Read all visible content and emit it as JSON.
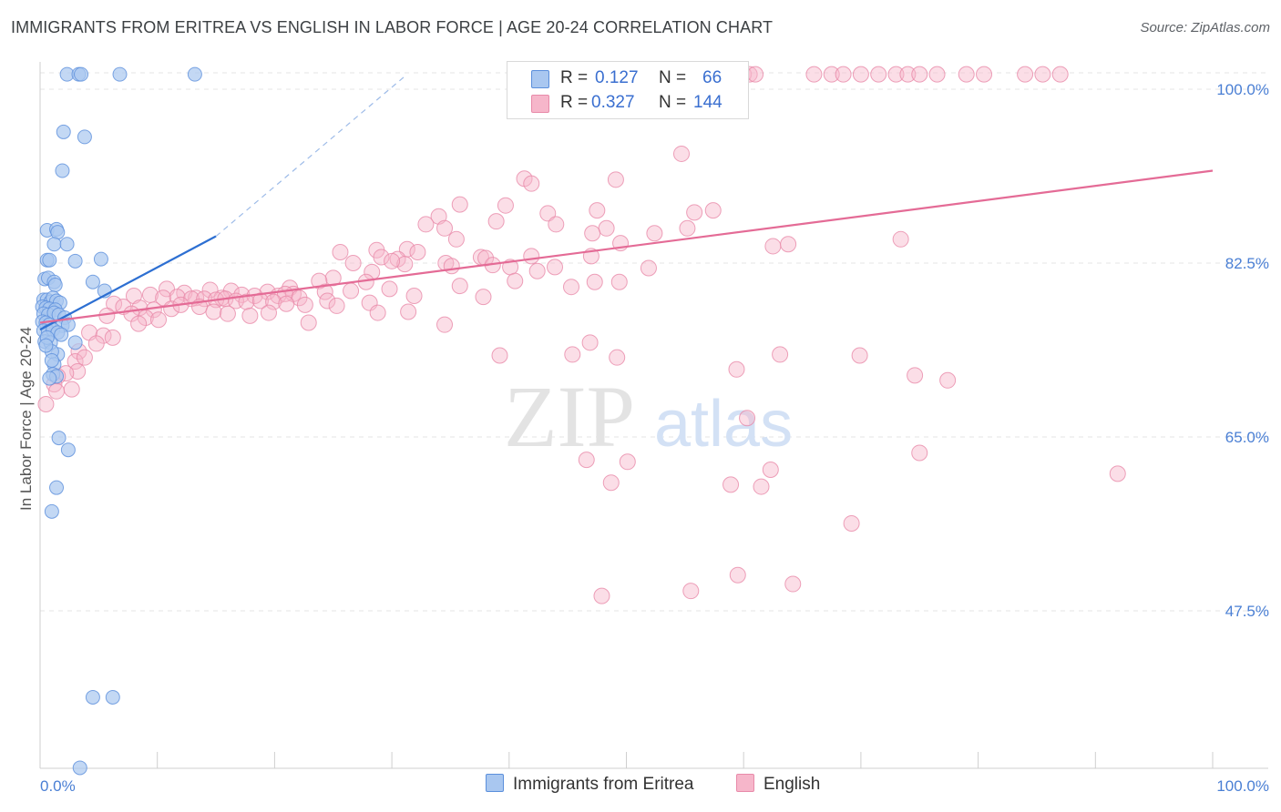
{
  "header": {
    "title": "IMMIGRANTS FROM ERITREA VS ENGLISH IN LABOR FORCE | AGE 20-24 CORRELATION CHART",
    "source": "Source: ZipAtlas.com"
  },
  "legend": {
    "r_label": "R =",
    "n_label": "N =",
    "rows": [
      {
        "r": "0.127",
        "n": "66"
      },
      {
        "r": "0.327",
        "n": "144"
      }
    ]
  },
  "watermark": {
    "zip": "ZIP",
    "atlas": "atlas"
  },
  "colors": {
    "eritrea_fill": "#a9c7f0",
    "eritrea_stroke": "#5b8fdc",
    "eritrea_line": "#2d6fd2",
    "english_fill": "#f6b6ca",
    "english_stroke": "#e88aa9",
    "english_line": "#e46b96",
    "tick_color": "#4a7fd4"
  },
  "chart_data": {
    "type": "scatter",
    "title": "IMMIGRANTS FROM ERITREA VS ENGLISH IN LABOR FORCE | AGE 20-24 CORRELATION CHART",
    "xlabel": "",
    "ylabel": "In Labor Force | Age 20-24",
    "xlim": [
      0,
      100
    ],
    "ylim": [
      30,
      100
    ],
    "x_tick_labels": [
      "0.0%",
      "100.0%"
    ],
    "y_ticks": [
      {
        "value": 100,
        "label": "100.0%"
      },
      {
        "value": 82.5,
        "label": "82.5%"
      },
      {
        "value": 65,
        "label": "65.0%"
      },
      {
        "value": 47.5,
        "label": "47.5%"
      }
    ],
    "grid": true,
    "legend_position": "top-center",
    "series": [
      {
        "name": "Immigrants from Eritrea",
        "r": 0.127,
        "n": 66,
        "trend": {
          "x0": 0,
          "y0": 75.8,
          "x1": 15,
          "y1": 85.2,
          "dashed_to": {
            "x": 31,
            "y": 101.2
          }
        },
        "points": [
          [
            2.3,
            101.5
          ],
          [
            3.3,
            101.5
          ],
          [
            3.5,
            101.5
          ],
          [
            6.8,
            101.5
          ],
          [
            13.2,
            101.5
          ],
          [
            2.0,
            95.7
          ],
          [
            3.8,
            95.2
          ],
          [
            1.9,
            91.8
          ],
          [
            0.6,
            85.8
          ],
          [
            1.4,
            85.9
          ],
          [
            1.5,
            85.6
          ],
          [
            1.2,
            84.4
          ],
          [
            2.3,
            84.4
          ],
          [
            0.6,
            82.8
          ],
          [
            0.8,
            82.8
          ],
          [
            3.0,
            82.7
          ],
          [
            5.2,
            82.9
          ],
          [
            0.4,
            80.9
          ],
          [
            0.7,
            81.0
          ],
          [
            1.2,
            80.6
          ],
          [
            1.3,
            80.3
          ],
          [
            4.5,
            80.6
          ],
          [
            5.5,
            79.7
          ],
          [
            0.3,
            78.8
          ],
          [
            0.6,
            78.8
          ],
          [
            0.9,
            78.6
          ],
          [
            1.1,
            79.0
          ],
          [
            1.4,
            78.7
          ],
          [
            1.7,
            78.5
          ],
          [
            0.2,
            78.1
          ],
          [
            0.5,
            78.0
          ],
          [
            0.8,
            77.9
          ],
          [
            1.3,
            77.8
          ],
          [
            0.3,
            77.4
          ],
          [
            0.7,
            77.3
          ],
          [
            1.2,
            77.5
          ],
          [
            1.6,
            77.3
          ],
          [
            2.1,
            77.0
          ],
          [
            0.2,
            76.6
          ],
          [
            0.5,
            76.5
          ],
          [
            0.8,
            76.3
          ],
          [
            1.9,
            76.2
          ],
          [
            2.4,
            76.3
          ],
          [
            0.3,
            75.7
          ],
          [
            0.7,
            75.6
          ],
          [
            1.1,
            75.8
          ],
          [
            1.5,
            75.5
          ],
          [
            1.8,
            75.3
          ],
          [
            0.4,
            74.6
          ],
          [
            0.9,
            74.5
          ],
          [
            3.0,
            74.5
          ],
          [
            1.5,
            73.3
          ],
          [
            1.0,
            73.6
          ],
          [
            1.2,
            72.3
          ],
          [
            1.1,
            71.3
          ],
          [
            1.4,
            71.1
          ],
          [
            1.6,
            64.9
          ],
          [
            2.4,
            63.7
          ],
          [
            1.4,
            59.9
          ],
          [
            1.0,
            57.5
          ],
          [
            4.5,
            38.8
          ],
          [
            6.2,
            38.8
          ],
          [
            3.4,
            31.7
          ],
          [
            0.8,
            70.9
          ],
          [
            1.0,
            72.7
          ],
          [
            0.6,
            75.0
          ],
          [
            0.5,
            74.2
          ]
        ]
      },
      {
        "name": "English",
        "r": 0.327,
        "n": 144,
        "trend": {
          "x0": 0,
          "y0": 76.5,
          "x1": 100,
          "y1": 91.8
        },
        "points": [
          [
            52,
            101.5
          ],
          [
            54,
            101.5
          ],
          [
            55,
            101.5
          ],
          [
            55.5,
            101.5
          ],
          [
            56,
            101.5
          ],
          [
            56.5,
            101.5
          ],
          [
            57,
            101.5
          ],
          [
            57.5,
            101.5
          ],
          [
            58,
            101.5
          ],
          [
            58.5,
            101.5
          ],
          [
            59,
            101.5
          ],
          [
            60,
            101.5
          ],
          [
            60.5,
            101.5
          ],
          [
            61,
            101.5
          ],
          [
            66,
            101.5
          ],
          [
            67.5,
            101.5
          ],
          [
            68.5,
            101.5
          ],
          [
            70,
            101.5
          ],
          [
            71.5,
            101.5
          ],
          [
            73,
            101.5
          ],
          [
            74,
            101.5
          ],
          [
            75,
            101.5
          ],
          [
            76.5,
            101.5
          ],
          [
            79,
            101.5
          ],
          [
            80.5,
            101.5
          ],
          [
            84,
            101.5
          ],
          [
            85.5,
            101.5
          ],
          [
            87,
            101.5
          ],
          [
            54.7,
            93.5
          ],
          [
            49.1,
            90.9
          ],
          [
            41.3,
            91.0
          ],
          [
            41.9,
            90.5
          ],
          [
            35.8,
            88.4
          ],
          [
            39.7,
            88.3
          ],
          [
            43.3,
            87.5
          ],
          [
            57.4,
            87.8
          ],
          [
            47.5,
            87.8
          ],
          [
            34.0,
            87.2
          ],
          [
            32.9,
            86.4
          ],
          [
            34.5,
            86.0
          ],
          [
            38.9,
            86.7
          ],
          [
            44.0,
            86.4
          ],
          [
            48.3,
            86.0
          ],
          [
            55.2,
            86.0
          ],
          [
            55.8,
            87.6
          ],
          [
            47.1,
            85.5
          ],
          [
            52.4,
            85.5
          ],
          [
            35.5,
            84.9
          ],
          [
            73.4,
            84.9
          ],
          [
            62.5,
            84.2
          ],
          [
            63.8,
            84.4
          ],
          [
            49.5,
            84.5
          ],
          [
            28.7,
            83.8
          ],
          [
            25.6,
            83.6
          ],
          [
            31.3,
            83.9
          ],
          [
            29.1,
            83.1
          ],
          [
            30.5,
            82.9
          ],
          [
            32.2,
            83.6
          ],
          [
            37.6,
            83.1
          ],
          [
            41.9,
            83.2
          ],
          [
            47.0,
            83.2
          ],
          [
            38.0,
            83.0
          ],
          [
            26.7,
            82.5
          ],
          [
            31.1,
            82.4
          ],
          [
            34.6,
            82.5
          ],
          [
            30.0,
            82.7
          ],
          [
            35.1,
            82.2
          ],
          [
            38.6,
            82.3
          ],
          [
            40.1,
            82.1
          ],
          [
            43.9,
            82.1
          ],
          [
            51.9,
            82.0
          ],
          [
            42.4,
            81.7
          ],
          [
            25.0,
            81.0
          ],
          [
            28.3,
            81.6
          ],
          [
            23.8,
            80.7
          ],
          [
            27.8,
            80.6
          ],
          [
            35.8,
            80.2
          ],
          [
            40.5,
            80.7
          ],
          [
            45.3,
            80.1
          ],
          [
            47.3,
            80.6
          ],
          [
            49.4,
            80.6
          ],
          [
            21.3,
            80.0
          ],
          [
            24.3,
            79.6
          ],
          [
            26.5,
            79.7
          ],
          [
            29.8,
            79.9
          ],
          [
            31.9,
            79.2
          ],
          [
            37.8,
            79.1
          ],
          [
            21.6,
            79.4
          ],
          [
            10.8,
            79.9
          ],
          [
            12.3,
            79.5
          ],
          [
            14.5,
            79.8
          ],
          [
            16.3,
            79.7
          ],
          [
            17.2,
            79.3
          ],
          [
            19.4,
            79.6
          ],
          [
            20.3,
            79.2
          ],
          [
            20.9,
            79.4
          ],
          [
            22.1,
            79.0
          ],
          [
            18.3,
            79.2
          ],
          [
            13.3,
            79.0
          ],
          [
            15.5,
            79.0
          ],
          [
            8.0,
            79.2
          ],
          [
            9.4,
            79.3
          ],
          [
            10.5,
            79.0
          ],
          [
            11.7,
            79.1
          ],
          [
            12.9,
            78.9
          ],
          [
            14.0,
            78.9
          ],
          [
            15.0,
            78.8
          ],
          [
            15.8,
            78.9
          ],
          [
            16.7,
            78.7
          ],
          [
            17.6,
            78.6
          ],
          [
            18.8,
            78.7
          ],
          [
            19.9,
            78.6
          ],
          [
            21.0,
            78.4
          ],
          [
            22.6,
            78.3
          ],
          [
            24.5,
            78.7
          ],
          [
            25.3,
            78.2
          ],
          [
            28.1,
            78.5
          ],
          [
            6.3,
            78.4
          ],
          [
            7.1,
            78.1
          ],
          [
            8.5,
            78.0
          ],
          [
            9.7,
            77.8
          ],
          [
            11.2,
            77.9
          ],
          [
            12.0,
            78.3
          ],
          [
            13.6,
            78.1
          ],
          [
            14.8,
            77.6
          ],
          [
            16.0,
            77.4
          ],
          [
            17.9,
            77.2
          ],
          [
            19.5,
            77.5
          ],
          [
            5.7,
            77.2
          ],
          [
            7.8,
            77.4
          ],
          [
            9.0,
            77.0
          ],
          [
            10.1,
            76.8
          ],
          [
            8.4,
            76.4
          ],
          [
            22.9,
            76.5
          ],
          [
            28.8,
            77.5
          ],
          [
            34.5,
            76.3
          ],
          [
            31.4,
            77.6
          ],
          [
            4.2,
            75.5
          ],
          [
            5.4,
            75.2
          ],
          [
            6.2,
            75.0
          ],
          [
            4.8,
            74.4
          ],
          [
            3.3,
            73.6
          ],
          [
            3.0,
            72.6
          ],
          [
            3.2,
            71.6
          ],
          [
            2.2,
            71.4
          ],
          [
            1.5,
            71.1
          ],
          [
            1.2,
            70.3
          ],
          [
            1.4,
            69.6
          ],
          [
            0.5,
            68.3
          ],
          [
            2.7,
            69.8
          ],
          [
            3.8,
            73.0
          ],
          [
            39.2,
            73.2
          ],
          [
            45.4,
            73.3
          ],
          [
            46.9,
            74.5
          ],
          [
            49.2,
            73.0
          ],
          [
            63.1,
            73.3
          ],
          [
            69.9,
            73.2
          ],
          [
            74.6,
            71.2
          ],
          [
            77.4,
            70.7
          ],
          [
            59.4,
            71.8
          ],
          [
            46.6,
            62.7
          ],
          [
            48.7,
            60.4
          ],
          [
            50.1,
            62.5
          ],
          [
            58.9,
            60.2
          ],
          [
            61.5,
            60.0
          ],
          [
            60.3,
            66.9
          ],
          [
            62.3,
            61.7
          ],
          [
            75.0,
            63.4
          ],
          [
            91.9,
            61.3
          ],
          [
            69.2,
            56.3
          ],
          [
            59.5,
            51.1
          ],
          [
            64.2,
            50.2
          ],
          [
            55.5,
            49.5
          ],
          [
            47.9,
            49.0
          ]
        ]
      }
    ]
  },
  "bottom_legend": [
    {
      "label": "Immigrants from Eritrea"
    },
    {
      "label": "English"
    }
  ]
}
